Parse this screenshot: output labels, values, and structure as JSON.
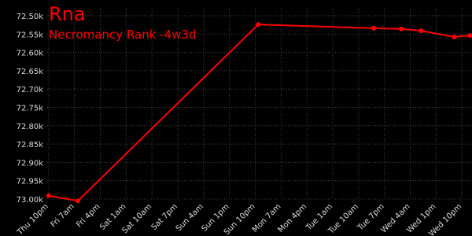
{
  "chart_data": {
    "type": "line",
    "title": "Rna",
    "subtitle": "Necromancy Rank -4w3d",
    "x": [
      0,
      10.2,
      73,
      113.3,
      122.9,
      129.8,
      141.3,
      146.8
    ],
    "series": [
      {
        "name": "Rna",
        "color": "#ff0000",
        "values": [
          72991,
          73005,
          72524,
          72534,
          72536,
          72541,
          72558,
          72554
        ]
      }
    ],
    "xlim": [
      -0.5,
      147.5
    ],
    "xticks": [
      {
        "value": 0,
        "label": "Thu 10pm"
      },
      {
        "value": 9,
        "label": "Fri 7am"
      },
      {
        "value": 18,
        "label": "Fri 4pm"
      },
      {
        "value": 27,
        "label": "Sat 1am"
      },
      {
        "value": 36,
        "label": "Sat 10am"
      },
      {
        "value": 45,
        "label": "Sat 7pm"
      },
      {
        "value": 54,
        "label": "Sun 4am"
      },
      {
        "value": 63,
        "label": "Sun 1pm"
      },
      {
        "value": 72,
        "label": "Sun 10pm"
      },
      {
        "value": 81,
        "label": "Mon 7am"
      },
      {
        "value": 90,
        "label": "Mon 4pm"
      },
      {
        "value": 99,
        "label": "Tue 1am"
      },
      {
        "value": 108,
        "label": "Tue 10am"
      },
      {
        "value": 117,
        "label": "Tue 7pm"
      },
      {
        "value": 126,
        "label": "Wed 4am"
      },
      {
        "value": 135,
        "label": "Wed 1pm"
      },
      {
        "value": 144,
        "label": "Wed 10pm"
      }
    ],
    "ylim": [
      73000,
      72500
    ],
    "y_inverted": true,
    "yticks": [
      {
        "value": 72500,
        "label": "72.50k"
      },
      {
        "value": 72550,
        "label": "72.55k"
      },
      {
        "value": 72600,
        "label": "72.60k"
      },
      {
        "value": 72650,
        "label": "72.65k"
      },
      {
        "value": 72700,
        "label": "72.70k"
      },
      {
        "value": 72750,
        "label": "72.75k"
      },
      {
        "value": 72800,
        "label": "72.80k"
      },
      {
        "value": 72850,
        "label": "72.85k"
      },
      {
        "value": 72900,
        "label": "72.90k"
      },
      {
        "value": 72950,
        "label": "72.95k"
      },
      {
        "value": 73000,
        "label": "73.00k"
      }
    ],
    "grid": true
  }
}
